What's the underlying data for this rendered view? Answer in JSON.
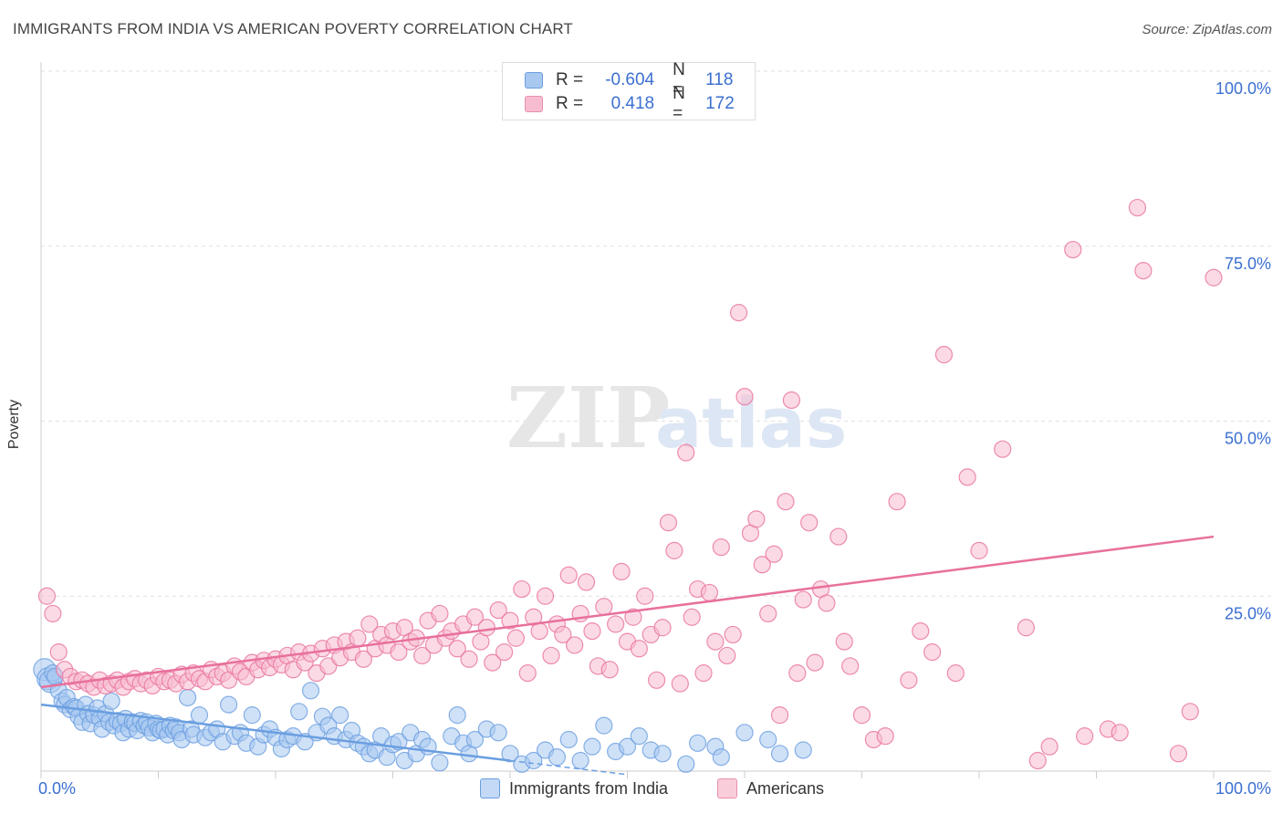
{
  "title": "IMMIGRANTS FROM INDIA VS AMERICAN POVERTY CORRELATION CHART",
  "source": "Source: ZipAtlas.com",
  "watermark": {
    "zip": "ZIP",
    "atlas": "atlas"
  },
  "legend": {
    "rows": [
      {
        "r_label": "R =",
        "r_value": "-0.604",
        "n_label": "N =",
        "n_value": "118",
        "color": "#a8c8f0",
        "border": "#6a9ee0"
      },
      {
        "r_label": "R =",
        "r_value": "0.418",
        "n_label": "N =",
        "n_value": "172",
        "color": "#f8bcd0",
        "border": "#e890ac"
      }
    ]
  },
  "bottom_legend": [
    {
      "label": "Immigrants from India",
      "color": "#c4d9f5",
      "border": "#6a9ee0"
    },
    {
      "label": "Americans",
      "color": "#f9cdd9",
      "border": "#e890ac"
    }
  ],
  "chart_data": {
    "type": "scatter",
    "title": "IMMIGRANTS FROM INDIA VS AMERICAN POVERTY CORRELATION CHART",
    "xlabel": "",
    "ylabel": "Poverty",
    "xlim": [
      0,
      100
    ],
    "ylim": [
      0,
      100
    ],
    "x_tick_labels": [
      {
        "value": 0,
        "label": "0.0%"
      },
      {
        "value": 100,
        "label": "100.0%"
      }
    ],
    "y_tick_labels": [
      {
        "value": 25,
        "label": "25.0%"
      },
      {
        "value": 50,
        "label": "50.0%"
      },
      {
        "value": 75,
        "label": "75.0%"
      },
      {
        "value": 100,
        "label": "100.0%"
      }
    ],
    "grid": true,
    "series": [
      {
        "name": "Immigrants from India",
        "color": "#6a9ee0",
        "fill": "#a8c8f0",
        "trend": {
          "x": [
            0,
            40
          ],
          "y": [
            9.5,
            1.5
          ],
          "dashed_to": [
            50,
            -0.5
          ]
        },
        "points": [
          [
            0.3,
            14.5
          ],
          [
            0.6,
            13.2
          ],
          [
            0.8,
            12.8
          ],
          [
            1.0,
            14.0
          ],
          [
            1.2,
            13.5
          ],
          [
            1.5,
            11.5
          ],
          [
            1.8,
            10.0
          ],
          [
            2.0,
            9.5
          ],
          [
            2.2,
            10.5
          ],
          [
            2.5,
            8.8
          ],
          [
            2.8,
            9.2
          ],
          [
            3.0,
            9.0
          ],
          [
            3.2,
            7.8
          ],
          [
            3.5,
            7.0
          ],
          [
            3.8,
            9.5
          ],
          [
            4.0,
            8.2
          ],
          [
            4.2,
            6.8
          ],
          [
            4.5,
            8.0
          ],
          [
            4.8,
            9.0
          ],
          [
            5.0,
            7.5
          ],
          [
            5.2,
            6.0
          ],
          [
            5.5,
            8.2
          ],
          [
            5.8,
            7.0
          ],
          [
            6.0,
            10.0
          ],
          [
            6.2,
            6.5
          ],
          [
            6.5,
            7.2
          ],
          [
            6.8,
            6.8
          ],
          [
            7.0,
            5.5
          ],
          [
            7.2,
            7.5
          ],
          [
            7.5,
            6.0
          ],
          [
            7.8,
            7.0
          ],
          [
            8.0,
            6.8
          ],
          [
            8.2,
            5.8
          ],
          [
            8.5,
            7.2
          ],
          [
            8.8,
            6.5
          ],
          [
            9.0,
            7.0
          ],
          [
            9.2,
            6.2
          ],
          [
            9.5,
            5.5
          ],
          [
            9.8,
            6.8
          ],
          [
            10.0,
            6.0
          ],
          [
            10.2,
            5.8
          ],
          [
            10.5,
            6.0
          ],
          [
            10.8,
            5.2
          ],
          [
            11.0,
            6.5
          ],
          [
            11.3,
            5.8
          ],
          [
            11.5,
            6.3
          ],
          [
            11.8,
            5.5
          ],
          [
            12.0,
            4.5
          ],
          [
            12.5,
            10.5
          ],
          [
            12.8,
            6.0
          ],
          [
            13.0,
            5.2
          ],
          [
            13.5,
            8.0
          ],
          [
            14.0,
            4.8
          ],
          [
            14.5,
            5.5
          ],
          [
            15.0,
            6.0
          ],
          [
            15.5,
            4.2
          ],
          [
            16.0,
            9.5
          ],
          [
            16.5,
            5.0
          ],
          [
            17.0,
            5.5
          ],
          [
            17.5,
            4.0
          ],
          [
            18.0,
            8.0
          ],
          [
            18.5,
            3.5
          ],
          [
            19.0,
            5.2
          ],
          [
            19.5,
            6.0
          ],
          [
            20.0,
            4.8
          ],
          [
            20.5,
            3.2
          ],
          [
            21.0,
            4.5
          ],
          [
            21.5,
            5.0
          ],
          [
            22.0,
            8.5
          ],
          [
            22.5,
            4.2
          ],
          [
            23.0,
            11.5
          ],
          [
            23.5,
            5.5
          ],
          [
            24.0,
            7.8
          ],
          [
            24.5,
            6.5
          ],
          [
            25.0,
            5.0
          ],
          [
            25.5,
            8.0
          ],
          [
            26.0,
            4.5
          ],
          [
            26.5,
            5.8
          ],
          [
            27.0,
            4.0
          ],
          [
            27.5,
            3.5
          ],
          [
            28.0,
            2.5
          ],
          [
            28.5,
            3.0
          ],
          [
            29.0,
            5.0
          ],
          [
            29.5,
            2.0
          ],
          [
            30.0,
            3.8
          ],
          [
            30.5,
            4.2
          ],
          [
            31.0,
            1.5
          ],
          [
            31.5,
            5.5
          ],
          [
            32.0,
            2.5
          ],
          [
            32.5,
            4.5
          ],
          [
            33.0,
            3.5
          ],
          [
            34.0,
            1.2
          ],
          [
            35.0,
            5.0
          ],
          [
            35.5,
            8.0
          ],
          [
            36.0,
            4.0
          ],
          [
            36.5,
            2.5
          ],
          [
            37.0,
            4.5
          ],
          [
            38.0,
            6.0
          ],
          [
            39.0,
            5.5
          ],
          [
            40.0,
            2.5
          ],
          [
            41.0,
            1.0
          ],
          [
            42.0,
            1.5
          ],
          [
            43.0,
            3.0
          ],
          [
            44.0,
            2.0
          ],
          [
            45.0,
            4.5
          ],
          [
            46.0,
            1.5
          ],
          [
            47.0,
            3.5
          ],
          [
            48.0,
            6.5
          ],
          [
            49.0,
            2.8
          ],
          [
            50.0,
            3.5
          ],
          [
            51.0,
            5.0
          ],
          [
            52.0,
            3.0
          ],
          [
            53.0,
            2.5
          ],
          [
            55.0,
            1.0
          ],
          [
            56.0,
            4.0
          ],
          [
            57.5,
            3.5
          ],
          [
            58.0,
            2.0
          ],
          [
            60.0,
            5.5
          ],
          [
            62.0,
            4.5
          ],
          [
            63.0,
            2.5
          ],
          [
            65.0,
            3.0
          ]
        ]
      },
      {
        "name": "Americans",
        "color": "#e8709c",
        "fill": "#f8bcd0",
        "trend": {
          "x": [
            0,
            100
          ],
          "y": [
            12.0,
            33.5
          ]
        },
        "points": [
          [
            0.5,
            25.0
          ],
          [
            1.0,
            22.5
          ],
          [
            1.5,
            17.0
          ],
          [
            2.0,
            14.5
          ],
          [
            2.5,
            13.5
          ],
          [
            3.0,
            12.8
          ],
          [
            3.5,
            13.0
          ],
          [
            4.0,
            12.5
          ],
          [
            4.5,
            12.0
          ],
          [
            5.0,
            13.0
          ],
          [
            5.5,
            12.2
          ],
          [
            6.0,
            12.5
          ],
          [
            6.5,
            13.0
          ],
          [
            7.0,
            12.0
          ],
          [
            7.5,
            12.8
          ],
          [
            8.0,
            13.2
          ],
          [
            8.5,
            12.5
          ],
          [
            9.0,
            13.0
          ],
          [
            9.5,
            12.2
          ],
          [
            10.0,
            13.5
          ],
          [
            10.5,
            12.8
          ],
          [
            11.0,
            13.0
          ],
          [
            11.5,
            12.5
          ],
          [
            12.0,
            13.8
          ],
          [
            12.5,
            12.8
          ],
          [
            13.0,
            14.0
          ],
          [
            13.5,
            13.2
          ],
          [
            14.0,
            12.8
          ],
          [
            14.5,
            14.5
          ],
          [
            15.0,
            13.5
          ],
          [
            15.5,
            14.0
          ],
          [
            16.0,
            13.0
          ],
          [
            16.5,
            15.0
          ],
          [
            17.0,
            14.2
          ],
          [
            17.5,
            13.5
          ],
          [
            18.0,
            15.5
          ],
          [
            18.5,
            14.5
          ],
          [
            19.0,
            15.8
          ],
          [
            19.5,
            14.8
          ],
          [
            20.0,
            16.0
          ],
          [
            20.5,
            15.2
          ],
          [
            21.0,
            16.5
          ],
          [
            21.5,
            14.5
          ],
          [
            22.0,
            17.0
          ],
          [
            22.5,
            15.5
          ],
          [
            23.0,
            16.8
          ],
          [
            23.5,
            14.0
          ],
          [
            24.0,
            17.5
          ],
          [
            24.5,
            15.0
          ],
          [
            25.0,
            18.0
          ],
          [
            25.5,
            16.2
          ],
          [
            26.0,
            18.5
          ],
          [
            26.5,
            17.0
          ],
          [
            27.0,
            19.0
          ],
          [
            27.5,
            16.0
          ],
          [
            28.0,
            21.0
          ],
          [
            28.5,
            17.5
          ],
          [
            29.0,
            19.5
          ],
          [
            29.5,
            18.0
          ],
          [
            30.0,
            20.0
          ],
          [
            30.5,
            17.0
          ],
          [
            31.0,
            20.5
          ],
          [
            31.5,
            18.5
          ],
          [
            32.0,
            19.0
          ],
          [
            32.5,
            16.5
          ],
          [
            33.0,
            21.5
          ],
          [
            33.5,
            18.0
          ],
          [
            34.0,
            22.5
          ],
          [
            34.5,
            19.0
          ],
          [
            35.0,
            20.0
          ],
          [
            35.5,
            17.5
          ],
          [
            36.0,
            21.0
          ],
          [
            36.5,
            16.0
          ],
          [
            37.0,
            22.0
          ],
          [
            37.5,
            18.5
          ],
          [
            38.0,
            20.5
          ],
          [
            38.5,
            15.5
          ],
          [
            39.0,
            23.0
          ],
          [
            39.5,
            17.0
          ],
          [
            40.0,
            21.5
          ],
          [
            40.5,
            19.0
          ],
          [
            41.0,
            26.0
          ],
          [
            41.5,
            14.0
          ],
          [
            42.0,
            22.0
          ],
          [
            42.5,
            20.0
          ],
          [
            43.0,
            25.0
          ],
          [
            43.5,
            16.5
          ],
          [
            44.0,
            21.0
          ],
          [
            44.5,
            19.5
          ],
          [
            45.0,
            28.0
          ],
          [
            45.5,
            18.0
          ],
          [
            46.0,
            22.5
          ],
          [
            46.5,
            27.0
          ],
          [
            47.0,
            20.0
          ],
          [
            47.5,
            15.0
          ],
          [
            48.0,
            23.5
          ],
          [
            48.5,
            14.5
          ],
          [
            49.0,
            21.0
          ],
          [
            49.5,
            28.5
          ],
          [
            50.0,
            18.5
          ],
          [
            50.5,
            22.0
          ],
          [
            51.0,
            17.5
          ],
          [
            51.5,
            25.0
          ],
          [
            52.0,
            19.5
          ],
          [
            52.5,
            13.0
          ],
          [
            53.0,
            20.5
          ],
          [
            53.5,
            35.5
          ],
          [
            54.0,
            31.5
          ],
          [
            54.5,
            12.5
          ],
          [
            55.0,
            45.5
          ],
          [
            55.5,
            22.0
          ],
          [
            56.0,
            26.0
          ],
          [
            56.5,
            14.0
          ],
          [
            57.0,
            25.5
          ],
          [
            57.5,
            18.5
          ],
          [
            58.0,
            32.0
          ],
          [
            58.5,
            16.5
          ],
          [
            59.0,
            19.5
          ],
          [
            59.5,
            65.5
          ],
          [
            60.0,
            53.5
          ],
          [
            60.5,
            34.0
          ],
          [
            61.0,
            36.0
          ],
          [
            61.5,
            29.5
          ],
          [
            62.0,
            22.5
          ],
          [
            62.5,
            31.0
          ],
          [
            63.0,
            8.0
          ],
          [
            63.5,
            38.5
          ],
          [
            64.0,
            53.0
          ],
          [
            64.5,
            14.0
          ],
          [
            65.0,
            24.5
          ],
          [
            65.5,
            35.5
          ],
          [
            66.0,
            15.5
          ],
          [
            66.5,
            26.0
          ],
          [
            67.0,
            24.0
          ],
          [
            68.0,
            33.5
          ],
          [
            68.5,
            18.5
          ],
          [
            69.0,
            15.0
          ],
          [
            70.0,
            8.0
          ],
          [
            71.0,
            4.5
          ],
          [
            72.0,
            5.0
          ],
          [
            73.0,
            38.5
          ],
          [
            74.0,
            13.0
          ],
          [
            75.0,
            20.0
          ],
          [
            76.0,
            17.0
          ],
          [
            77.0,
            59.5
          ],
          [
            78.0,
            14.0
          ],
          [
            79.0,
            42.0
          ],
          [
            80.0,
            31.5
          ],
          [
            82.0,
            46.0
          ],
          [
            84.0,
            20.5
          ],
          [
            85.0,
            1.5
          ],
          [
            86.0,
            3.5
          ],
          [
            88.0,
            74.5
          ],
          [
            89.0,
            5.0
          ],
          [
            91.0,
            6.0
          ],
          [
            92.0,
            5.5
          ],
          [
            93.5,
            80.5
          ],
          [
            94.0,
            71.5
          ],
          [
            97.0,
            2.5
          ],
          [
            98.0,
            8.5
          ],
          [
            100.0,
            70.5
          ]
        ]
      }
    ]
  }
}
